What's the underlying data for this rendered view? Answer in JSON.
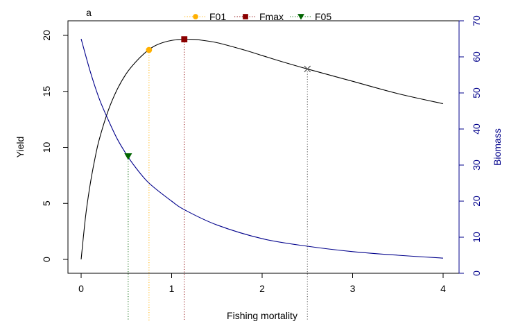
{
  "chart_data": {
    "type": "line",
    "panel_label": "a",
    "xlabel": "Fishing mortality",
    "ylabel_left": "Yield",
    "ylabel_right": "Biomass",
    "xlim": [
      0,
      4
    ],
    "ylim_left": [
      0,
      20
    ],
    "ylim_right": [
      0,
      70
    ],
    "x_ticks": [
      0,
      1,
      2,
      3,
      4
    ],
    "y_left_ticks": [
      0,
      5,
      10,
      15,
      20
    ],
    "y_right_ticks": [
      0,
      10,
      20,
      30,
      40,
      50,
      60,
      70
    ],
    "legend_position": "top-center",
    "colors": {
      "yield_line": "#000000",
      "biomass_line": "#00008B",
      "right_axis": "#00008B",
      "F01": "#FFB000",
      "Fmax": "#8B0000",
      "F05": "#006400",
      "extra_line": "#555555"
    },
    "legend": [
      {
        "label": "F01",
        "marker": "circle",
        "color": "#FFB000"
      },
      {
        "label": "Fmax",
        "marker": "square",
        "color": "#8B0000"
      },
      {
        "label": "F05",
        "marker": "triangle-down",
        "color": "#006400"
      }
    ],
    "series": [
      {
        "axis": "left",
        "color": "#000000",
        "x": [
          0,
          0.05,
          0.1,
          0.15,
          0.2,
          0.3,
          0.4,
          0.5,
          0.6,
          0.7,
          0.8,
          0.9,
          1.0,
          1.1,
          1.2,
          1.3,
          1.5,
          1.8,
          2.0,
          2.2,
          2.5,
          3.0,
          3.5,
          4.0
        ],
        "values": [
          0,
          3.9,
          6.7,
          8.9,
          10.7,
          13.3,
          15.2,
          16.6,
          17.6,
          18.4,
          19.0,
          19.35,
          19.55,
          19.63,
          19.65,
          19.6,
          19.35,
          18.7,
          18.2,
          17.7,
          17.0,
          15.9,
          14.8,
          13.9
        ]
      },
      {
        "axis": "right",
        "color": "#00008B",
        "x": [
          0,
          0.1,
          0.2,
          0.3,
          0.4,
          0.5,
          0.6,
          0.75,
          1.0,
          1.15,
          1.5,
          2.0,
          2.5,
          3.0,
          3.5,
          4.0
        ],
        "values": [
          65,
          56,
          48.4,
          42.5,
          37.2,
          33.0,
          29.4,
          25.0,
          20.0,
          17.5,
          13.4,
          9.6,
          7.5,
          6.0,
          5.0,
          4.2
        ]
      }
    ],
    "reference_points": [
      {
        "label": "F05",
        "x": 0.52,
        "y": 9.2,
        "marker": "triangle-down",
        "color": "#006400"
      },
      {
        "label": "F01",
        "x": 0.75,
        "y": 18.7,
        "marker": "circle",
        "color": "#FFB000"
      },
      {
        "label": "Fmax",
        "x": 1.14,
        "y": 19.65,
        "marker": "square",
        "color": "#8B0000"
      },
      {
        "x": 2.5,
        "y": 17.0,
        "marker": "cross",
        "color": "#555555"
      }
    ]
  }
}
